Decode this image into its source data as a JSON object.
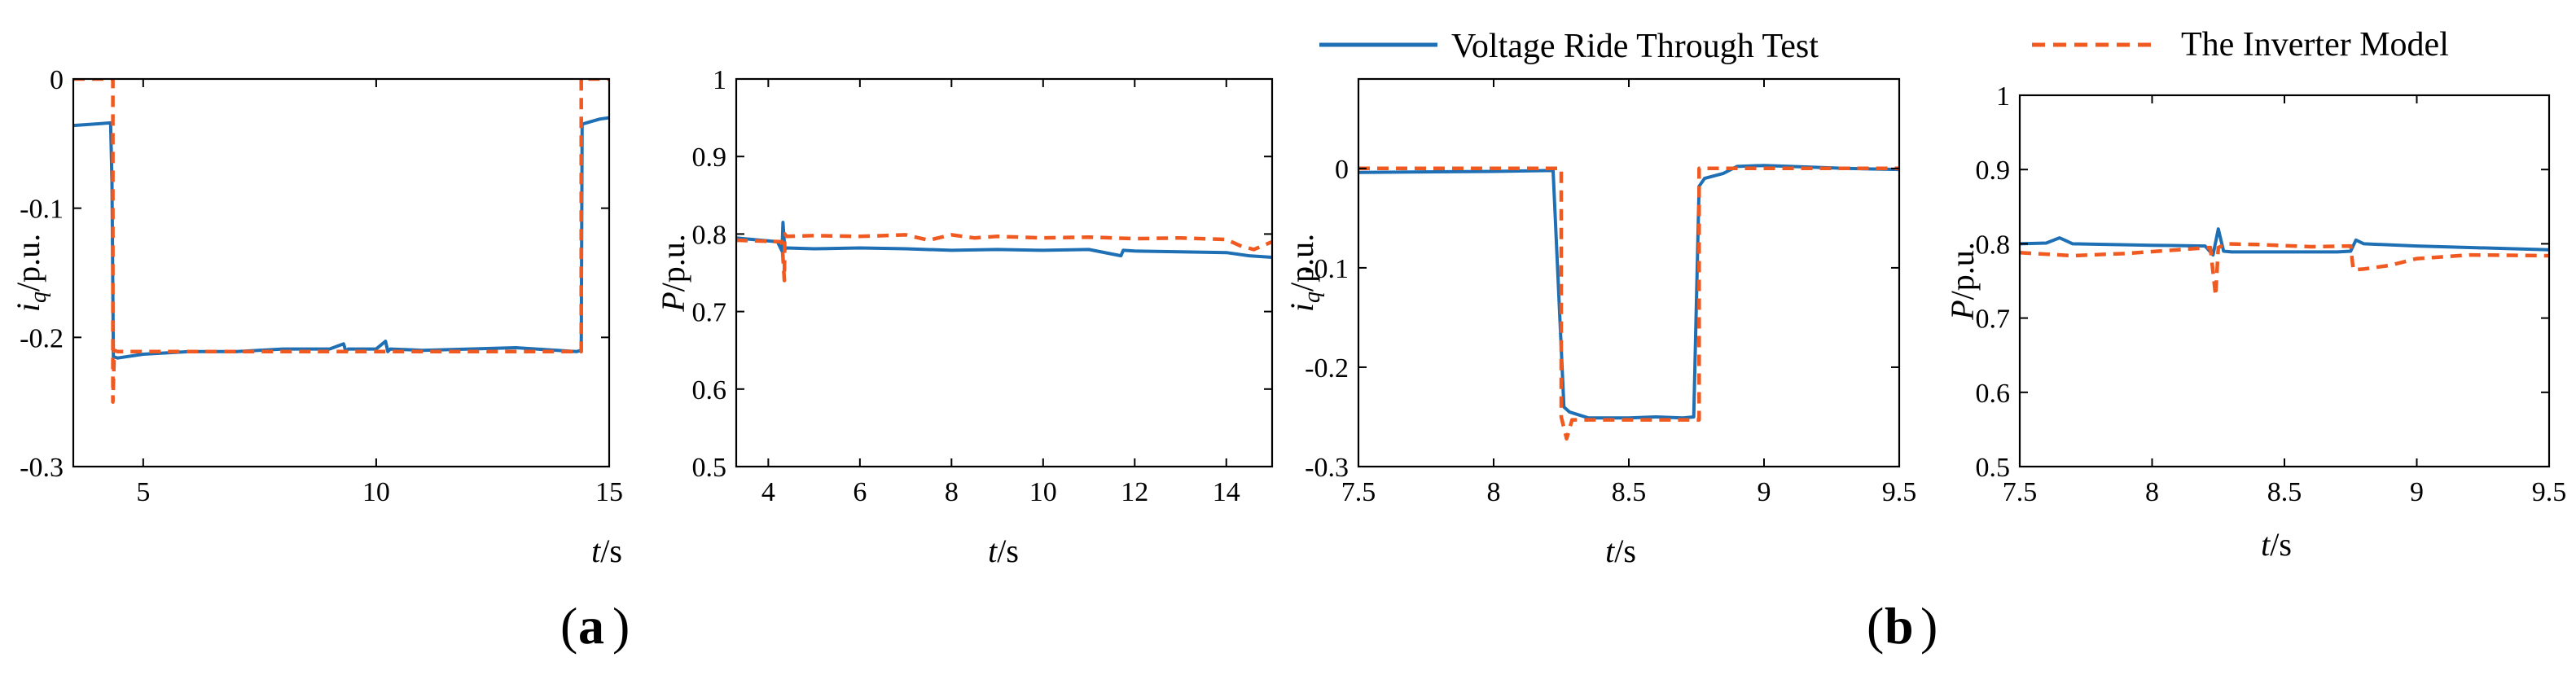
{
  "colors": {
    "test": "#1f6fb4",
    "model": "#f05a20"
  },
  "legend": [
    {
      "name": "Voltage Ride Through Test",
      "color": "#1f6fb4",
      "style": "solid"
    },
    {
      "name": "The Inverter Model",
      "color": "#f05a20",
      "style": "dashed"
    }
  ],
  "panel_labels": {
    "a": "a",
    "b": "b"
  },
  "chart_data": [
    {
      "type": "line",
      "ylabel": {
        "main": "i",
        "sub": "q",
        "unit": "/p.u."
      },
      "xlabel": {
        "main": "t",
        "unit": "/s"
      },
      "xlim": [
        3.5,
        15
      ],
      "ylim": [
        -0.3,
        0
      ],
      "xticks": [
        5,
        10,
        15
      ],
      "yticks": [
        0,
        -0.1,
        -0.2,
        -0.3
      ],
      "xtick_labels": [
        "5",
        "10",
        "15"
      ],
      "ytick_labels": [
        "0",
        "-0.1",
        "-0.2",
        "-0.3"
      ],
      "series": [
        {
          "name": "Voltage Ride Through Test",
          "color": "#1f6fb4",
          "style": "solid",
          "x": [
            3.5,
            4.3,
            4.33,
            4.36,
            4.45,
            5,
            6,
            7,
            8,
            9,
            9.3,
            9.35,
            9.4,
            10,
            10.2,
            10.25,
            10.3,
            11,
            12,
            13,
            14.3,
            14.4,
            14.42,
            14.6,
            14.8,
            15
          ],
          "y": [
            -0.036,
            -0.034,
            -0.08,
            -0.215,
            -0.216,
            -0.213,
            -0.211,
            -0.211,
            -0.209,
            -0.209,
            -0.205,
            -0.211,
            -0.209,
            -0.209,
            -0.203,
            -0.211,
            -0.209,
            -0.21,
            -0.209,
            -0.208,
            -0.211,
            -0.21,
            -0.035,
            -0.033,
            -0.031,
            -0.03
          ]
        },
        {
          "name": "The Inverter Model",
          "color": "#f05a20",
          "style": "dashed",
          "x": [
            3.5,
            4.35,
            4.35,
            4.38,
            4.45,
            14.4,
            14.4,
            15
          ],
          "y": [
            0,
            0,
            -0.25,
            -0.21,
            -0.211,
            -0.211,
            0,
            0
          ]
        }
      ]
    },
    {
      "type": "line",
      "ylabel": {
        "main": "P",
        "unit": "/p.u."
      },
      "xlabel": {
        "main": "t",
        "unit": "/s"
      },
      "xlim": [
        3.3,
        15
      ],
      "ylim": [
        0.5,
        1
      ],
      "xticks": [
        4,
        6,
        8,
        10,
        12,
        14
      ],
      "yticks": [
        0.5,
        0.6,
        0.7,
        0.8,
        0.9,
        1
      ],
      "xtick_labels": [
        "4",
        "6",
        "8",
        "10",
        "12",
        "14"
      ],
      "ytick_labels": [
        "0.5",
        "0.6",
        "0.7",
        "0.8",
        "0.9",
        "1"
      ],
      "series": [
        {
          "name": "Voltage Ride Through Test",
          "color": "#1f6fb4",
          "style": "solid",
          "x": [
            3.3,
            4.2,
            4.3,
            4.32,
            4.36,
            4.4,
            5,
            6,
            7,
            8,
            9,
            10,
            11,
            11.7,
            11.75,
            12,
            13,
            14,
            14.5,
            15
          ],
          "y": [
            0.795,
            0.79,
            0.778,
            0.815,
            0.78,
            0.782,
            0.781,
            0.782,
            0.781,
            0.779,
            0.78,
            0.779,
            0.78,
            0.772,
            0.779,
            0.778,
            0.777,
            0.776,
            0.772,
            0.77
          ]
        },
        {
          "name": "The Inverter Model",
          "color": "#f05a20",
          "style": "dashed",
          "x": [
            3.3,
            4.3,
            4.35,
            4.36,
            4.4,
            5,
            6,
            7,
            7.5,
            8,
            8.5,
            9,
            10,
            11,
            12,
            13,
            14,
            14.3,
            14.6,
            15
          ],
          "y": [
            0.792,
            0.79,
            0.74,
            0.8,
            0.797,
            0.798,
            0.797,
            0.799,
            0.792,
            0.799,
            0.795,
            0.797,
            0.795,
            0.796,
            0.794,
            0.795,
            0.793,
            0.785,
            0.78,
            0.79
          ]
        }
      ]
    },
    {
      "type": "line",
      "ylabel": {
        "main": "i",
        "sub": "q",
        "unit": "/p.u."
      },
      "xlabel": {
        "main": "t",
        "unit": "/s"
      },
      "xlim": [
        7.5,
        9.5
      ],
      "ylim": [
        -0.3,
        0.09
      ],
      "xticks": [
        7.5,
        8,
        8.5,
        9,
        9.5
      ],
      "yticks": [
        0,
        -0.1,
        -0.2,
        -0.3
      ],
      "xtick_labels": [
        "7.5",
        "8",
        "8.5",
        "9",
        "9.5"
      ],
      "ytick_labels": [
        "0",
        "-0.1",
        "-0.2",
        "-0.3"
      ],
      "series": [
        {
          "name": "Voltage Ride Through Test",
          "color": "#1f6fb4",
          "style": "solid",
          "x": [
            7.5,
            8,
            8.22,
            8.26,
            8.28,
            8.35,
            8.5,
            8.6,
            8.7,
            8.74,
            8.76,
            8.78,
            8.85,
            8.9,
            9.0,
            9.1,
            9.3,
            9.5
          ],
          "y": [
            -0.004,
            -0.003,
            -0.002,
            -0.24,
            -0.245,
            -0.251,
            -0.251,
            -0.25,
            -0.251,
            -0.25,
            -0.018,
            -0.01,
            -0.005,
            0.002,
            0.003,
            0.002,
            0.0,
            -0.001
          ]
        },
        {
          "name": "The Inverter Model",
          "color": "#f05a20",
          "style": "dashed",
          "x": [
            7.5,
            8.25,
            8.25,
            8.27,
            8.29,
            8.76,
            8.76,
            9.5
          ],
          "y": [
            0,
            0,
            -0.25,
            -0.272,
            -0.253,
            -0.253,
            0,
            0
          ]
        }
      ]
    },
    {
      "type": "line",
      "ylabel": {
        "main": "P",
        "unit": "/p.u."
      },
      "xlabel": {
        "main": "t",
        "unit": "/s"
      },
      "xlim": [
        7.5,
        9.5
      ],
      "ylim": [
        0.5,
        1
      ],
      "xticks": [
        7.5,
        8,
        8.5,
        9,
        9.5
      ],
      "yticks": [
        0.5,
        0.6,
        0.7,
        0.8,
        0.9,
        1
      ],
      "xtick_labels": [
        "7.5",
        "8",
        "8.5",
        "9",
        "9.5"
      ],
      "ytick_labels": [
        "0.5",
        "0.6",
        "0.7",
        "0.8",
        "0.9",
        "1"
      ],
      "series": [
        {
          "name": "Voltage Ride Through Test",
          "color": "#1f6fb4",
          "style": "solid",
          "x": [
            7.5,
            7.6,
            7.65,
            7.7,
            8,
            8.2,
            8.23,
            8.25,
            8.27,
            8.3,
            8.5,
            8.7,
            8.75,
            8.77,
            8.8,
            9,
            9.2,
            9.5
          ],
          "y": [
            0.8,
            0.801,
            0.808,
            0.8,
            0.798,
            0.797,
            0.785,
            0.82,
            0.79,
            0.789,
            0.789,
            0.789,
            0.79,
            0.805,
            0.8,
            0.797,
            0.795,
            0.792
          ]
        },
        {
          "name": "The Inverter Model",
          "color": "#f05a20",
          "style": "dashed",
          "x": [
            7.5,
            7.7,
            7.9,
            8.1,
            8.22,
            8.24,
            8.25,
            8.28,
            8.4,
            8.6,
            8.75,
            8.76,
            8.8,
            8.9,
            9.0,
            9.2,
            9.5
          ],
          "y": [
            0.788,
            0.784,
            0.787,
            0.792,
            0.795,
            0.73,
            0.795,
            0.8,
            0.799,
            0.796,
            0.797,
            0.765,
            0.766,
            0.771,
            0.78,
            0.785,
            0.784
          ]
        }
      ]
    }
  ]
}
